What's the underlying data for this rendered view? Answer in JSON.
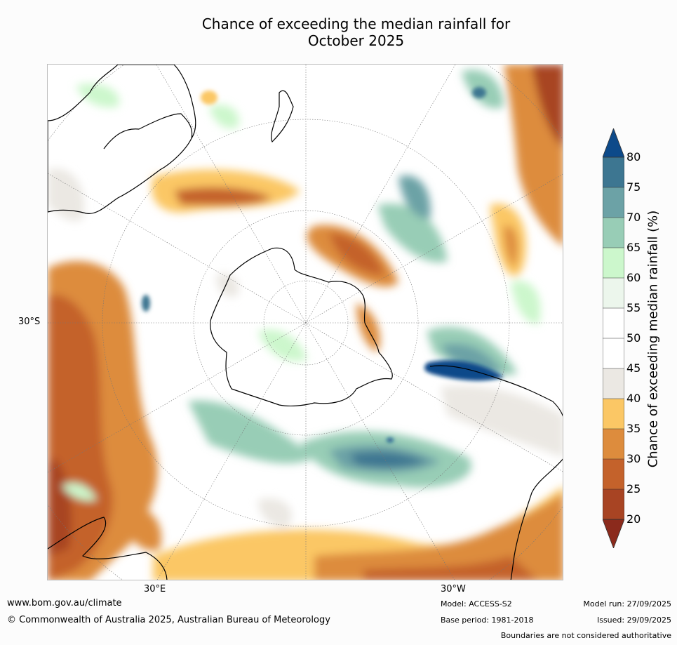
{
  "title_line1": "Chance of exceeding the median rainfall for",
  "title_line2": "October 2025",
  "axis_labels": {
    "left": "30°S",
    "bottom_left": "30°E",
    "bottom_right": "30°W"
  },
  "colorbar": {
    "label": "Chance of exceeding median rainfall (%)",
    "ticks": [
      "80",
      "75",
      "70",
      "65",
      "60",
      "55",
      "50",
      "45",
      "40",
      "35",
      "30",
      "25",
      "20"
    ],
    "colors": {
      "above_80": "#0d4a8a",
      "75_80": "#3d7691",
      "70_75": "#6ca2a6",
      "65_70": "#98cdb6",
      "60_65": "#ccf7cc",
      "55_60": "#ecf6ec",
      "50_55": "#ffffff",
      "45_50": "#ffffff",
      "40_45": "#ebe8e3",
      "35_40": "#fbc765",
      "30_35": "#dd8c3d",
      "25_30": "#c4622b",
      "20_25": "#a84423",
      "below_20": "#8b2a1c"
    }
  },
  "footer": {
    "website": "www.bom.gov.au/climate",
    "copyright": "© Commonwealth of Australia 2025, Australian Bureau of Meteorology",
    "model": "Model: ACCESS-S2",
    "base_period": "Base period: 1981-2018",
    "model_run": "Model run: 27/09/2025",
    "issued": "Issued: 29/09/2025",
    "disclaimer": "Boundaries are not considered authoritative"
  }
}
